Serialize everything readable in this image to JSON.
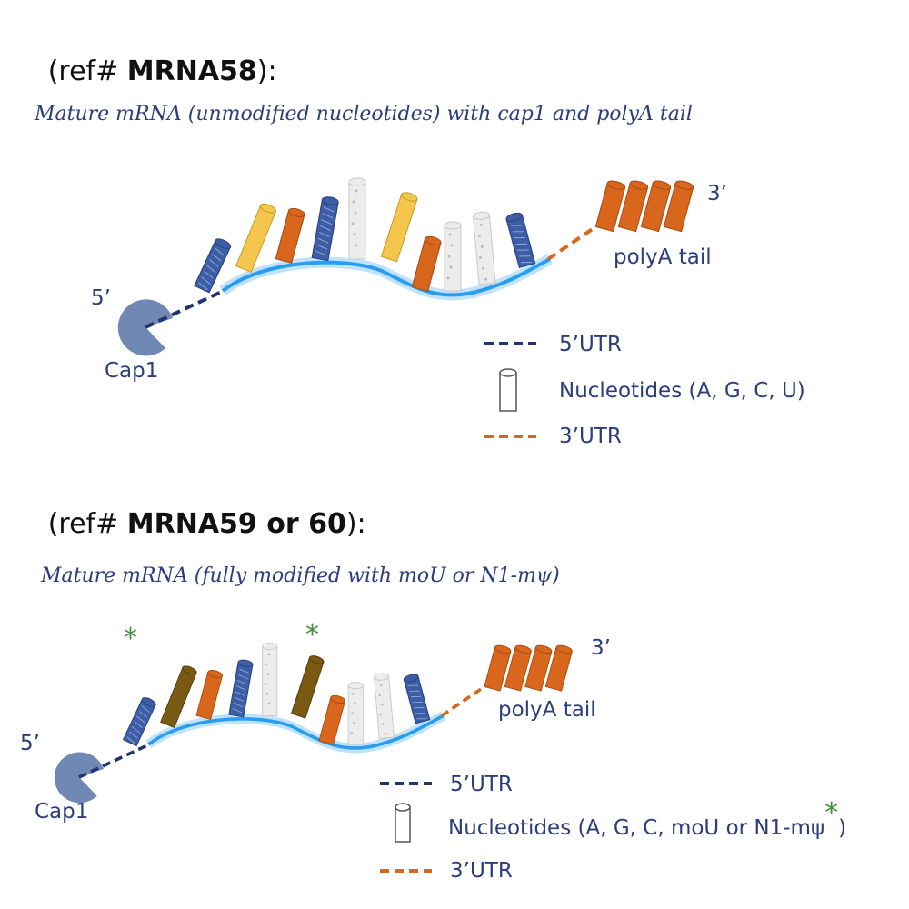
{
  "sections": [
    {
      "heading": {
        "prefix": "(ref# ",
        "ref": "MRNA58",
        "suffix": "):"
      },
      "subtitle": "Mature mRNA (unmodified nucleotides) with cap1 and polyA tail",
      "labels": {
        "five_prime": "5’",
        "cap": "Cap1",
        "three_prime": "3’",
        "polya": "polyA tail"
      },
      "legend": {
        "utr5": "5’UTR",
        "nucleotides": "Nucleotides (A, G, C, U)",
        "utr3": "3’UTR"
      }
    },
    {
      "heading": {
        "prefix": "(ref# ",
        "ref": "MRNA59 or 60",
        "suffix": "):"
      },
      "subtitle": "Mature mRNA (fully modified with moU or N1-mψ)",
      "asterisks": [
        "*",
        "*"
      ],
      "labels": {
        "five_prime": "5’",
        "cap": "Cap1",
        "three_prime": "3’",
        "polya": "polyA tail"
      },
      "legend": {
        "utr5": "5’UTR",
        "nucleotides": "Nucleotides (A, G, C, moU or N1-mψ",
        "nucleotides_star": "*",
        "nucleotides_close": ")",
        "utr3": "3’UTR"
      }
    }
  ]
}
